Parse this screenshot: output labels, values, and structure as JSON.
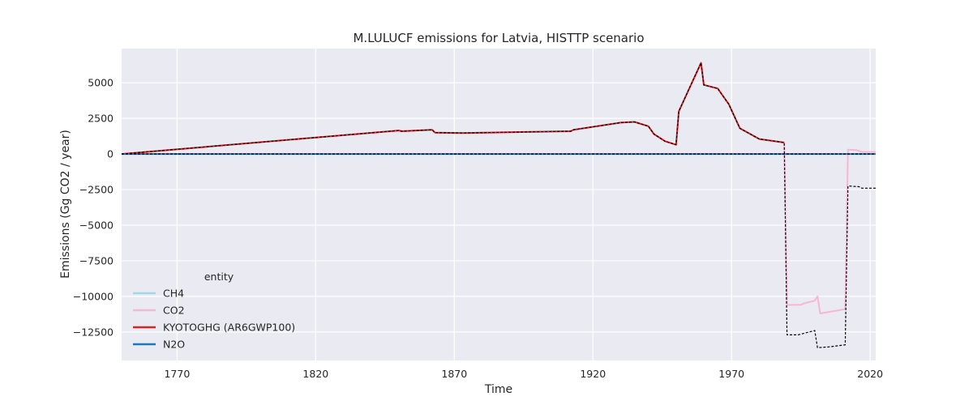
{
  "chart_data": {
    "type": "line",
    "title": "M.LULUCF emissions for Latvia, HISTTP scenario",
    "xlabel": "Time",
    "ylabel": "Emissions (Gg CO2 / year)",
    "xlim": [
      1750,
      2022
    ],
    "ylim": [
      -14500,
      7400
    ],
    "x_ticks": [
      1770,
      1820,
      1870,
      1920,
      1970,
      2020
    ],
    "y_ticks": [
      5000,
      2500,
      0,
      -2500,
      -5000,
      -7500,
      -10000,
      -12500
    ],
    "y_tick_labels": [
      "5000",
      "2500",
      "0",
      "−2500",
      "−5000",
      "−7500",
      "−10000",
      "−12500"
    ],
    "grid": true,
    "legend": {
      "title": "entity",
      "placement": "lower-left",
      "entries": [
        "CH4",
        "CO2",
        "KYOTOGHG (AR6GWP100)",
        "N2O"
      ]
    },
    "series": [
      {
        "name": "CH4",
        "color": "#9edae5",
        "style": "solid",
        "points": [
          [
            1750,
            0
          ],
          [
            1990,
            0
          ],
          [
            2022,
            0
          ]
        ]
      },
      {
        "name": "CO2",
        "color": "#f7b6d2",
        "style": "solid",
        "points": [
          [
            1750,
            0
          ],
          [
            1850,
            1650
          ],
          [
            1851,
            1600
          ],
          [
            1862,
            1700
          ],
          [
            1863,
            1500
          ],
          [
            1873,
            1470
          ],
          [
            1912,
            1600
          ],
          [
            1913,
            1700
          ],
          [
            1930,
            2200
          ],
          [
            1935,
            2250
          ],
          [
            1940,
            1950
          ],
          [
            1942,
            1400
          ],
          [
            1946,
            900
          ],
          [
            1950,
            650
          ],
          [
            1951,
            3000
          ],
          [
            1959,
            6400
          ],
          [
            1960,
            4850
          ],
          [
            1965,
            4600
          ],
          [
            1969,
            3500
          ],
          [
            1973,
            1800
          ],
          [
            1980,
            1050
          ],
          [
            1989,
            800
          ],
          [
            1990,
            -10600
          ],
          [
            1995,
            -10600
          ],
          [
            1996,
            -10500
          ],
          [
            2000,
            -10300
          ],
          [
            2001,
            -10000
          ],
          [
            2002,
            -11200
          ],
          [
            2005,
            -11100
          ],
          [
            2011,
            -10900
          ],
          [
            2012,
            300
          ],
          [
            2015,
            280
          ],
          [
            2017,
            150
          ],
          [
            2022,
            140
          ]
        ]
      },
      {
        "name": "KYOTOGHG (AR6GWP100)",
        "color": "#d62728",
        "style": "solid",
        "points": [
          [
            1750,
            0
          ],
          [
            1850,
            1650
          ],
          [
            1851,
            1600
          ],
          [
            1862,
            1700
          ],
          [
            1863,
            1500
          ],
          [
            1873,
            1470
          ],
          [
            1912,
            1600
          ],
          [
            1913,
            1700
          ],
          [
            1930,
            2200
          ],
          [
            1935,
            2250
          ],
          [
            1940,
            1950
          ],
          [
            1942,
            1400
          ],
          [
            1946,
            900
          ],
          [
            1950,
            650
          ],
          [
            1951,
            3000
          ],
          [
            1959,
            6400
          ],
          [
            1960,
            4850
          ],
          [
            1965,
            4600
          ],
          [
            1969,
            3500
          ],
          [
            1973,
            1800
          ],
          [
            1980,
            1050
          ],
          [
            1989,
            800
          ]
        ]
      },
      {
        "name": "N2O",
        "color": "#1f77b4",
        "style": "solid",
        "points": [
          [
            1750,
            0
          ],
          [
            1990,
            0
          ],
          [
            2022,
            0
          ]
        ]
      }
    ],
    "reference_lines": [
      {
        "color": "#000000",
        "style": "dashed",
        "points": [
          [
            1750,
            0
          ],
          [
            1850,
            1650
          ],
          [
            1851,
            1600
          ],
          [
            1862,
            1700
          ],
          [
            1863,
            1500
          ],
          [
            1873,
            1470
          ],
          [
            1912,
            1600
          ],
          [
            1913,
            1700
          ],
          [
            1930,
            2200
          ],
          [
            1935,
            2250
          ],
          [
            1940,
            1950
          ],
          [
            1942,
            1400
          ],
          [
            1946,
            900
          ],
          [
            1950,
            650
          ],
          [
            1951,
            3000
          ],
          [
            1959,
            6400
          ],
          [
            1960,
            4850
          ],
          [
            1965,
            4600
          ],
          [
            1969,
            3500
          ],
          [
            1973,
            1800
          ],
          [
            1980,
            1050
          ],
          [
            1989,
            800
          ],
          [
            1990,
            -12700
          ],
          [
            1994,
            -12700
          ],
          [
            2000,
            -12400
          ],
          [
            2001,
            -13600
          ],
          [
            2005,
            -13550
          ],
          [
            2011,
            -13400
          ],
          [
            2012,
            -2250
          ],
          [
            2016,
            -2300
          ],
          [
            2017,
            -2400
          ],
          [
            2022,
            -2400
          ]
        ]
      },
      {
        "color": "#000000",
        "style": "dashed",
        "points": [
          [
            1750,
            0
          ],
          [
            2022,
            0
          ]
        ]
      }
    ]
  }
}
